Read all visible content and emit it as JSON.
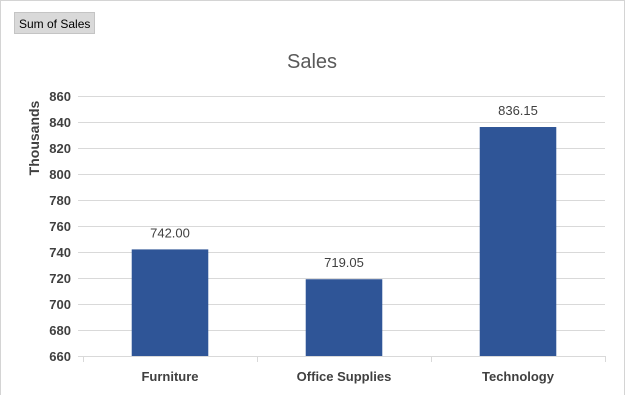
{
  "pivot_field_button": "Sum of Sales",
  "colors": {
    "bar": "#2F5597",
    "grid": "#d9d9d9",
    "text": "#404040",
    "title": "#595959"
  },
  "chart_data": {
    "type": "bar",
    "title": "Sales",
    "ylabel": "Thousands",
    "xlabel": "",
    "categories": [
      "Furniture",
      "Office Supplies",
      "Technology"
    ],
    "values": [
      742.0,
      719.05,
      836.15
    ],
    "value_labels": [
      "742.00",
      "719.05",
      "836.15"
    ],
    "ylim": [
      660,
      860
    ],
    "yticks": [
      660,
      680,
      700,
      720,
      740,
      760,
      780,
      800,
      820,
      840,
      860
    ],
    "grid": true,
    "legend": "none"
  }
}
